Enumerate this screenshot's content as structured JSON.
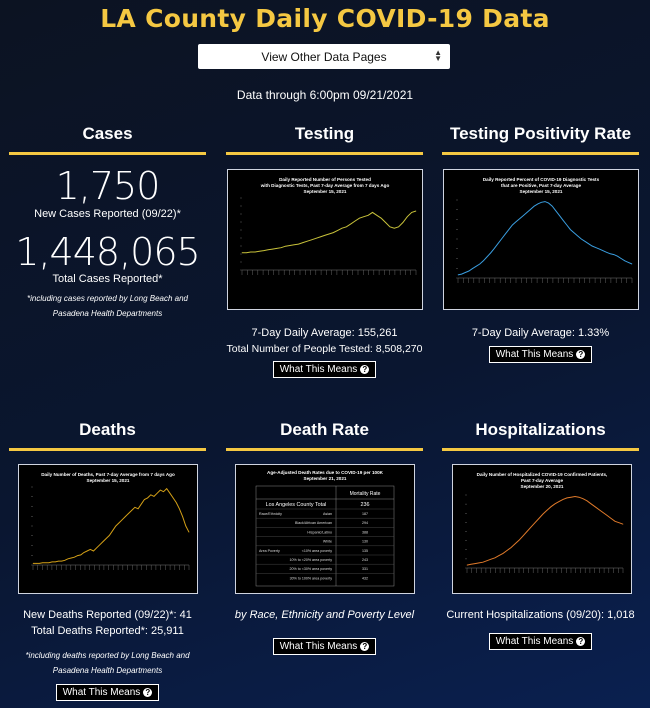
{
  "title": "LA County Daily COVID-19 Data",
  "select_label": "View Other Data Pages",
  "data_through": "Data through 6:00pm 09/21/2021",
  "btn_label": "What This Means",
  "cases": {
    "heading": "Cases",
    "new_value": "1,750",
    "new_label": "New Cases Reported (09/22)*",
    "total_value": "1,448,065",
    "total_label": "Total Cases Reported*",
    "footnote": "*including cases reported by Long Beach and Pasadena Health Departments"
  },
  "testing": {
    "heading": "Testing",
    "chart_title": [
      "Daily Reported Number of Persons Tested",
      "with Diagnostic Tests, Past 7-day Average from 7 days Ago",
      "September 15, 2021"
    ],
    "avg": "7-Day Daily Average: 155,261",
    "total": "Total Number of People Tested: 8,508,270"
  },
  "positivity": {
    "heading": "Testing Positivity Rate",
    "chart_title": [
      "Daily Reported Percent of COVID-19 Diagnostic Tests",
      "that are Positive, Past 7-day Average",
      "September 15, 2021"
    ],
    "avg": "7-Day Daily Average: 1.33%"
  },
  "deaths": {
    "heading": "Deaths",
    "chart_title": [
      "Daily Number of Deaths, Past 7-day Average from 7 days Ago",
      "September 15, 2021"
    ],
    "new": "New Deaths Reported (09/22)*: 41",
    "total": "Total Deaths Reported*: 25,911",
    "footnote": "*including deaths reported by Long Beach and Pasadena Health Departments"
  },
  "death_rate": {
    "heading": "Death Rate",
    "chart_title": [
      "Age-Adjusted Death Rates due to COVID-19 per 100K",
      "September 21, 2021"
    ],
    "col_header": "Mortality Rate",
    "total_label": "Los Angeles County Total",
    "total_value": "236",
    "rows": [
      [
        "Race/Ethnicity",
        "Asian",
        "187"
      ],
      [
        "",
        "Black/African American",
        "294"
      ],
      [
        "",
        "Hispanic/Latino",
        "388"
      ],
      [
        "",
        "White",
        "130"
      ],
      [
        "Area Poverty",
        "<10% area poverty",
        "135"
      ],
      [
        "",
        "10% to <20% area poverty",
        "243"
      ],
      [
        "",
        "20% to <30% area poverty",
        "331"
      ],
      [
        "",
        "30% to 100% area poverty",
        "432"
      ]
    ],
    "caption": "by Race, Ethnicity and Poverty Level"
  },
  "hospitalizations": {
    "heading": "Hospitalizations",
    "chart_title": [
      "Daily Number of Hospitalized COVID-19 Confirmed Patients,",
      "Past 7-day Average",
      "September 20, 2021"
    ],
    "current": "Current Hospitalizations (09/20): 1,018"
  },
  "colors": {
    "accent": "#f5c842",
    "testing_line": "#c8c23a",
    "positivity_line": "#3a9ee0",
    "deaths_line": "#d4a017",
    "hosp_line": "#e07a2a"
  },
  "chart_data": [
    {
      "type": "line",
      "title": "Daily Reported Number of Persons Tested with Diagnostic Tests, Past 7-day Average from 7 days Ago September 15, 2021",
      "series": [
        {
          "values": [
            24,
            24,
            25,
            25,
            26,
            27,
            28,
            29,
            30,
            31,
            33,
            34,
            35,
            36,
            38,
            40,
            42,
            44,
            46,
            48,
            50,
            52,
            55,
            58,
            60,
            64,
            68,
            72,
            74,
            76,
            80,
            76,
            72,
            66,
            60,
            58,
            60,
            66,
            74,
            80,
            82
          ]
        }
      ]
    },
    {
      "type": "line",
      "title": "Daily Reported Percent of COVID-19 Diagnostic Tests that are Positive, Past 7-day Average September 15, 2021",
      "series": [
        {
          "values": [
            4,
            5,
            7,
            9,
            12,
            15,
            18,
            22,
            27,
            32,
            38,
            44,
            50,
            56,
            62,
            68,
            72,
            76,
            80,
            84,
            88,
            92,
            95,
            97,
            98,
            96,
            92,
            86,
            80,
            74,
            68,
            62,
            58,
            54,
            50,
            47,
            44,
            41,
            39,
            37,
            35,
            33,
            31,
            30,
            28,
            25,
            22,
            20,
            18
          ]
        }
      ]
    },
    {
      "type": "line",
      "title": "Daily Number of Deaths, Past 7-day Average from 7 days Ago September 15, 2021",
      "series": [
        {
          "values": [
            2,
            2,
            2,
            3,
            3,
            3,
            4,
            4,
            5,
            5,
            6,
            8,
            9,
            10,
            12,
            13,
            16,
            18,
            20,
            18,
            22,
            26,
            30,
            34,
            38,
            44,
            50,
            54,
            58,
            62,
            66,
            70,
            74,
            72,
            78,
            84,
            86,
            90,
            88,
            92,
            96,
            94,
            98,
            92,
            86,
            80,
            72,
            62,
            50,
            42
          ]
        }
      ]
    },
    {
      "type": "table",
      "title": "Age-Adjusted Death Rates due to COVID-19 per 100K September 21, 2021"
    },
    {
      "type": "line",
      "title": "Daily Number of Hospitalized COVID-19 Confirmed Patients, Past 7-day Average September 20, 2021",
      "series": [
        {
          "values": [
            4,
            5,
            6,
            7,
            8,
            10,
            12,
            14,
            17,
            20,
            24,
            28,
            33,
            38,
            44,
            50,
            56,
            62,
            68,
            74,
            79,
            84,
            88,
            91,
            94,
            96,
            97,
            98,
            97,
            95,
            92,
            88,
            84,
            80,
            76,
            72,
            68,
            64,
            62,
            60
          ]
        }
      ]
    }
  ]
}
